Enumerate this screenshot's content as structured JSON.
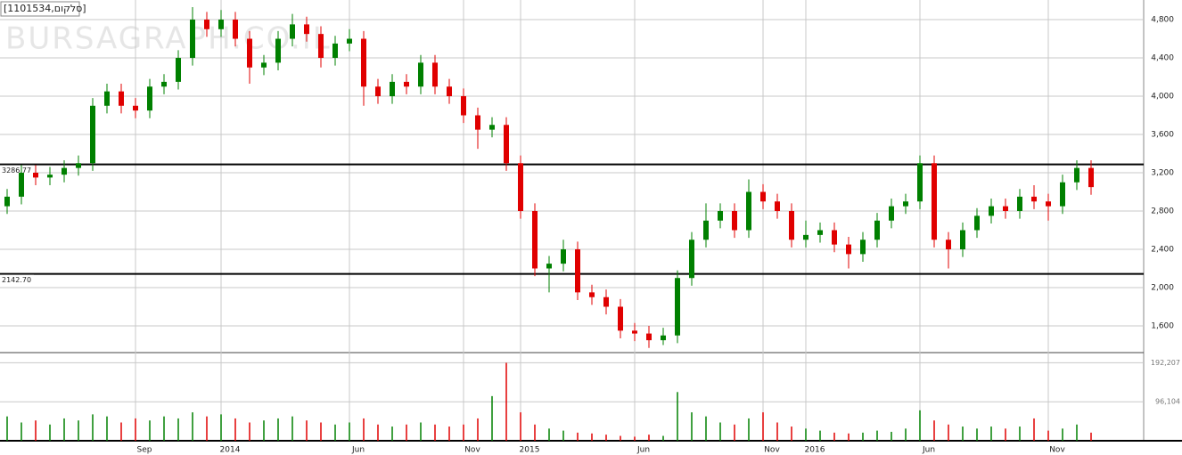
{
  "chart_data": {
    "type": "candlestick",
    "title": "[1101534,סלקום]",
    "watermark": "BURSAGRAPH.CO.IL",
    "categories": [
      null,
      null,
      null,
      null,
      null,
      null,
      null,
      null,
      null,
      "Sep",
      null,
      null,
      null,
      null,
      null,
      "2014",
      null,
      null,
      null,
      null,
      null,
      null,
      null,
      null,
      "Jun",
      null,
      null,
      null,
      null,
      null,
      null,
      null,
      "Nov",
      null,
      null,
      null,
      "2015",
      null,
      null,
      null,
      null,
      null,
      null,
      null,
      "Jun",
      null,
      null,
      null,
      null,
      null,
      null,
      null,
      null,
      "Nov",
      null,
      null,
      "2016",
      null,
      null,
      null,
      null,
      null,
      null,
      null,
      "Jun",
      null,
      null,
      null,
      null,
      null,
      null,
      null,
      null,
      "Nov",
      null,
      null,
      null
    ],
    "open": [
      2850,
      2950,
      3200,
      3150,
      3180,
      3250,
      3300,
      3900,
      4050,
      3900,
      3850,
      4100,
      4150,
      4400,
      4800,
      4700,
      4800,
      4600,
      4300,
      4350,
      4600,
      4750,
      4650,
      4400,
      4550,
      4600,
      4100,
      4000,
      4150,
      4100,
      4350,
      4100,
      4000,
      3800,
      3650,
      3700,
      3300,
      2800,
      2200,
      2250,
      2400,
      1950,
      1900,
      1800,
      1550,
      1520,
      1450,
      1500,
      2100,
      2500,
      2700,
      2800,
      2600,
      3000,
      2900,
      2800,
      2500,
      2550,
      2600,
      2450,
      2350,
      2500,
      2700,
      2850,
      2900,
      3300,
      2500,
      2400,
      2600,
      2750,
      2850,
      2800,
      2950,
      2900,
      2850,
      3100,
      3250
    ],
    "high": [
      3030,
      3280,
      3280,
      3260,
      3330,
      3380,
      3980,
      4130,
      4130,
      3980,
      4180,
      4230,
      4480,
      4930,
      4880,
      4900,
      4880,
      4680,
      4430,
      4680,
      4860,
      4830,
      4730,
      4630,
      4700,
      4680,
      4180,
      4230,
      4230,
      4430,
      4430,
      4180,
      4080,
      3880,
      3780,
      3780,
      3380,
      2880,
      2330,
      2500,
      2480,
      2030,
      1980,
      1880,
      1630,
      1600,
      1580,
      2180,
      2580,
      2880,
      2880,
      2880,
      3130,
      3080,
      2980,
      2880,
      2700,
      2680,
      2680,
      2530,
      2580,
      2780,
      2930,
      2980,
      3380,
      3380,
      2580,
      2680,
      2830,
      2930,
      2930,
      3030,
      3070,
      2980,
      3180,
      3330,
      3330
    ],
    "low": [
      2770,
      2870,
      3070,
      3070,
      3100,
      3170,
      3220,
      3820,
      3820,
      3770,
      3770,
      4020,
      4070,
      4320,
      4620,
      4620,
      4520,
      4130,
      4220,
      4270,
      4520,
      4570,
      4300,
      4320,
      4470,
      3900,
      3920,
      3920,
      4020,
      4020,
      4020,
      3920,
      3720,
      3450,
      3570,
      3220,
      2720,
      2120,
      1950,
      2170,
      1870,
      1820,
      1720,
      1470,
      1440,
      1370,
      1400,
      1420,
      2020,
      2420,
      2620,
      2520,
      2520,
      2820,
      2720,
      2420,
      2420,
      2470,
      2370,
      2200,
      2270,
      2420,
      2620,
      2770,
      2820,
      2420,
      2200,
      2320,
      2520,
      2670,
      2720,
      2720,
      2820,
      2700,
      2770,
      3020,
      2970
    ],
    "close": [
      2950,
      3200,
      3150,
      3180,
      3250,
      3300,
      3900,
      4050,
      3900,
      3850,
      4100,
      4150,
      4400,
      4800,
      4700,
      4800,
      4600,
      4300,
      4350,
      4600,
      4750,
      4650,
      4400,
      4550,
      4600,
      4100,
      4000,
      4150,
      4100,
      4350,
      4100,
      4000,
      3800,
      3650,
      3700,
      3300,
      2800,
      2200,
      2250,
      2400,
      1950,
      1900,
      1800,
      1550,
      1520,
      1450,
      1500,
      2100,
      2500,
      2700,
      2800,
      2600,
      3000,
      2900,
      2800,
      2500,
      2550,
      2600,
      2450,
      2350,
      2500,
      2700,
      2850,
      2900,
      3300,
      2500,
      2400,
      2600,
      2750,
      2850,
      2800,
      2950,
      2900,
      2850,
      3100,
      3250,
      3050
    ],
    "volume": [
      60000,
      45000,
      50000,
      40000,
      55000,
      50000,
      65000,
      60000,
      45000,
      55000,
      50000,
      60000,
      55000,
      70000,
      60000,
      65000,
      55000,
      45000,
      50000,
      55000,
      60000,
      50000,
      45000,
      40000,
      45000,
      55000,
      40000,
      35000,
      40000,
      45000,
      40000,
      35000,
      40000,
      55000,
      110000,
      192000,
      70000,
      40000,
      30000,
      25000,
      20000,
      18000,
      15000,
      12000,
      10000,
      15000,
      12000,
      120000,
      70000,
      60000,
      45000,
      40000,
      55000,
      70000,
      45000,
      35000,
      30000,
      25000,
      20000,
      18000,
      20000,
      25000,
      22000,
      30000,
      75000,
      50000,
      40000,
      35000,
      30000,
      35000,
      30000,
      35000,
      55000,
      25000,
      30000,
      40000,
      20000
    ],
    "up_color": "#008000",
    "down_color": "#e00000",
    "ylim": [
      1330,
      5005
    ],
    "yticks": [
      {
        "value": 1600,
        "label": "1,600"
      },
      {
        "value": 2000,
        "label": "2,000"
      },
      {
        "value": 2400,
        "label": "2,400"
      },
      {
        "value": 2800,
        "label": "2,800"
      },
      {
        "value": 3200,
        "label": "3,200"
      },
      {
        "value": 3600,
        "label": "3,600"
      },
      {
        "value": 4000,
        "label": "4,000"
      },
      {
        "value": 4400,
        "label": "4,400"
      },
      {
        "value": 4800,
        "label": "4,800"
      }
    ],
    "y2lim": [
      0,
      215000
    ],
    "y2ticks": [
      {
        "value": 96104,
        "label": "96,104"
      },
      {
        "value": 192207,
        "label": "192,207"
      }
    ],
    "hlines": [
      3286.77,
      {
        "value": 2142.7,
        "label": "2142.70"
      }
    ],
    "grid": true
  }
}
